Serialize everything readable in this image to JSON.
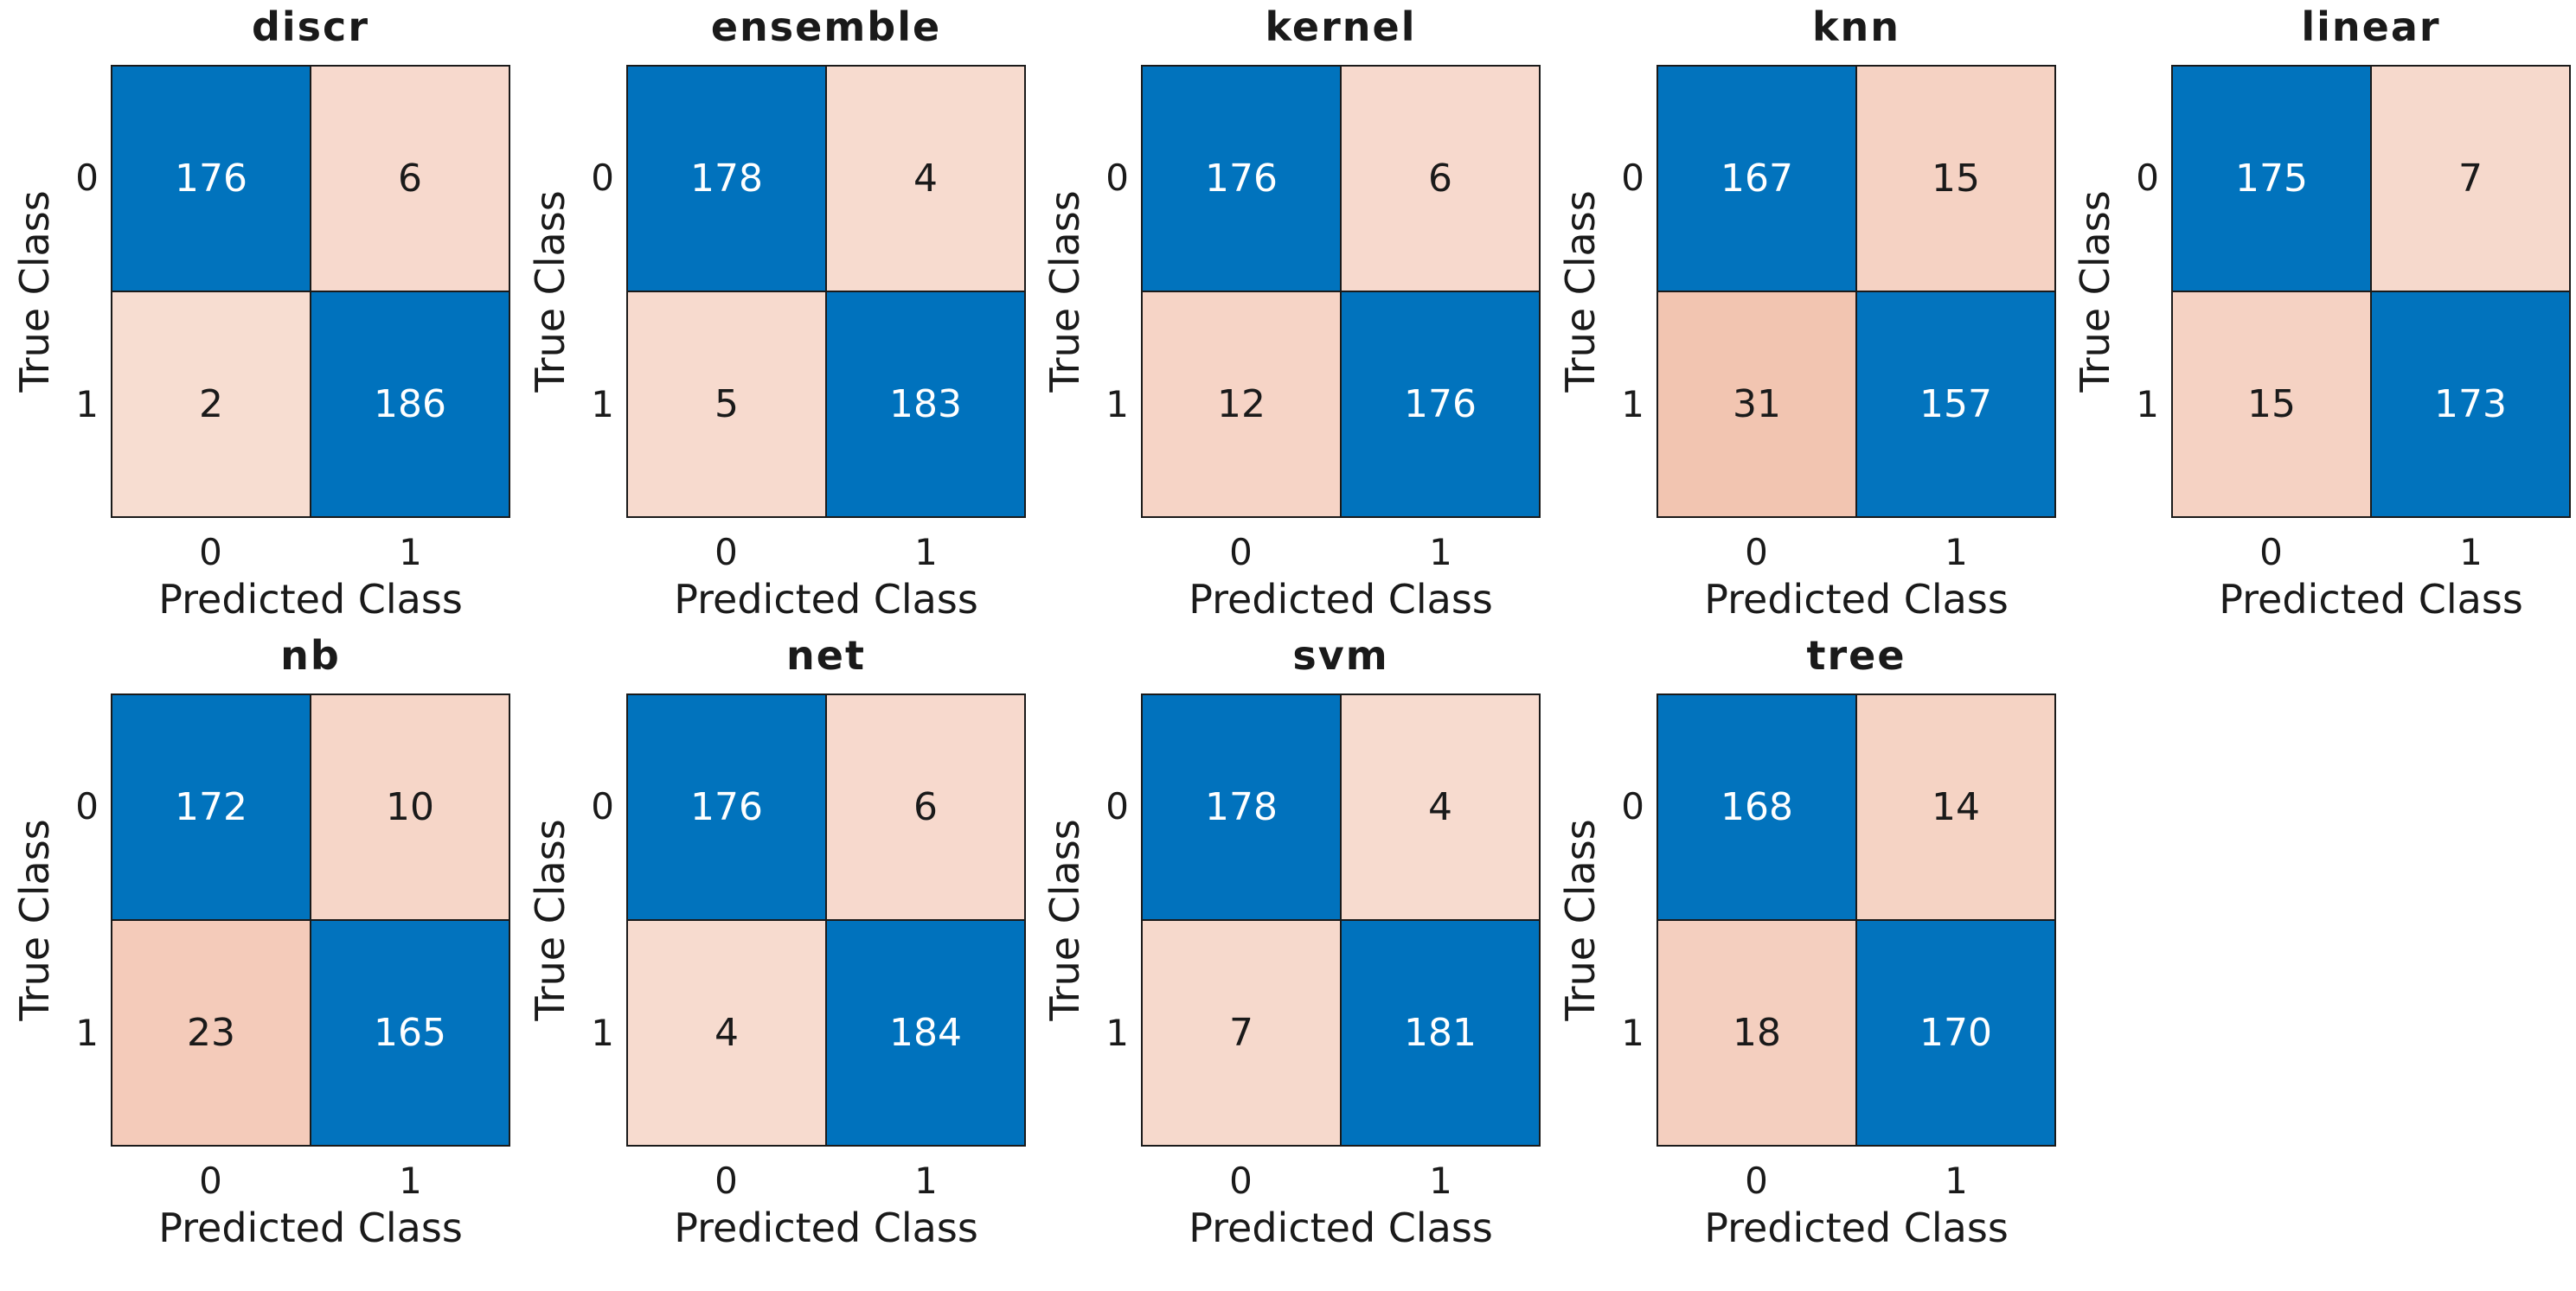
{
  "figure": {
    "type": "confusion-matrix-grid",
    "rows": 2,
    "columns": 5,
    "colors": {
      "diagonal": "#0072BD",
      "off_diagonal": "#D95319",
      "grid_line": "#1a1a1a",
      "background": "#ffffff",
      "text_on_diagonal": "#ffffff",
      "text_on_off_diagonal": "#1a1a1a"
    }
  },
  "chart_data": [
    {
      "type": "heatmap",
      "title": "discr",
      "xlabel": "Predicted Class",
      "ylabel": "True Class",
      "x": [
        "0",
        "1"
      ],
      "y": [
        "0",
        "1"
      ],
      "matrix": [
        [
          176,
          6
        ],
        [
          2,
          186
        ]
      ]
    },
    {
      "type": "heatmap",
      "title": "ensemble",
      "xlabel": "Predicted Class",
      "ylabel": "True Class",
      "x": [
        "0",
        "1"
      ],
      "y": [
        "0",
        "1"
      ],
      "matrix": [
        [
          178,
          4
        ],
        [
          5,
          183
        ]
      ]
    },
    {
      "type": "heatmap",
      "title": "kernel",
      "xlabel": "Predicted Class",
      "ylabel": "True Class",
      "x": [
        "0",
        "1"
      ],
      "y": [
        "0",
        "1"
      ],
      "matrix": [
        [
          176,
          6
        ],
        [
          12,
          176
        ]
      ]
    },
    {
      "type": "heatmap",
      "title": "knn",
      "xlabel": "Predicted Class",
      "ylabel": "True Class",
      "x": [
        "0",
        "1"
      ],
      "y": [
        "0",
        "1"
      ],
      "matrix": [
        [
          167,
          15
        ],
        [
          31,
          157
        ]
      ]
    },
    {
      "type": "heatmap",
      "title": "linear",
      "xlabel": "Predicted Class",
      "ylabel": "True Class",
      "x": [
        "0",
        "1"
      ],
      "y": [
        "0",
        "1"
      ],
      "matrix": [
        [
          175,
          7
        ],
        [
          15,
          173
        ]
      ]
    },
    {
      "type": "heatmap",
      "title": "nb",
      "xlabel": "Predicted Class",
      "ylabel": "True Class",
      "x": [
        "0",
        "1"
      ],
      "y": [
        "0",
        "1"
      ],
      "matrix": [
        [
          172,
          10
        ],
        [
          23,
          165
        ]
      ]
    },
    {
      "type": "heatmap",
      "title": "net",
      "xlabel": "Predicted Class",
      "ylabel": "True Class",
      "x": [
        "0",
        "1"
      ],
      "y": [
        "0",
        "1"
      ],
      "matrix": [
        [
          176,
          6
        ],
        [
          4,
          184
        ]
      ]
    },
    {
      "type": "heatmap",
      "title": "svm",
      "xlabel": "Predicted Class",
      "ylabel": "True Class",
      "x": [
        "0",
        "1"
      ],
      "y": [
        "0",
        "1"
      ],
      "matrix": [
        [
          178,
          4
        ],
        [
          7,
          181
        ]
      ]
    },
    {
      "type": "heatmap",
      "title": "tree",
      "xlabel": "Predicted Class",
      "ylabel": "True Class",
      "x": [
        "0",
        "1"
      ],
      "y": [
        "0",
        "1"
      ],
      "matrix": [
        [
          168,
          14
        ],
        [
          18,
          170
        ]
      ]
    }
  ]
}
